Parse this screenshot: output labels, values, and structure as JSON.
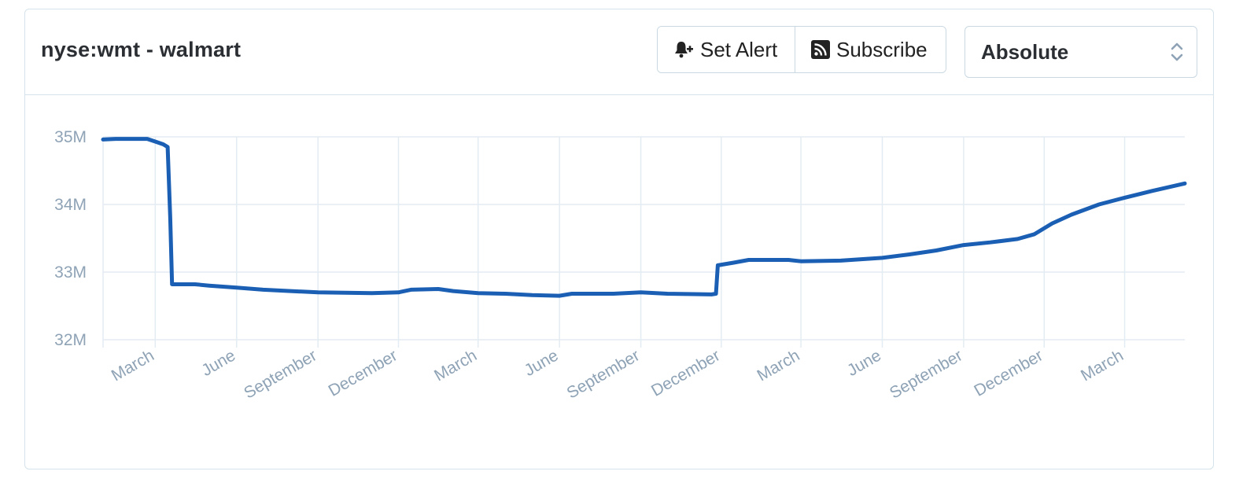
{
  "header": {
    "title": "nyse:wmt - walmart",
    "set_alert_label": "Set Alert",
    "subscribe_label": "Subscribe",
    "mode_select_value": "Absolute"
  },
  "colors": {
    "line": "#1a5fb4",
    "grid": "#e3ecf2",
    "axis_text": "#8fa3b6",
    "border": "#d5e3ec"
  },
  "icons": {
    "alert": "bell-plus-icon",
    "subscribe": "rss-icon",
    "select": "up-down-caret-icon"
  },
  "chart_data": {
    "type": "line",
    "title": "",
    "xlabel": "",
    "ylabel": "",
    "ylim": [
      32000000,
      35000000
    ],
    "yticks": [
      {
        "value": 35000000,
        "label": "35M"
      },
      {
        "value": 34000000,
        "label": "34M"
      },
      {
        "value": 33000000,
        "label": "33M"
      },
      {
        "value": 32000000,
        "label": "32M"
      }
    ],
    "xlim": [
      "2017-01-01",
      "2020-05-08"
    ],
    "xticks": [
      {
        "date": "2017-03-01",
        "label": "March"
      },
      {
        "date": "2017-06-01",
        "label": "June"
      },
      {
        "date": "2017-09-01",
        "label": "September"
      },
      {
        "date": "2017-12-01",
        "label": "December"
      },
      {
        "date": "2018-03-01",
        "label": "March"
      },
      {
        "date": "2018-06-01",
        "label": "June"
      },
      {
        "date": "2018-09-01",
        "label": "September"
      },
      {
        "date": "2018-12-01",
        "label": "December"
      },
      {
        "date": "2019-03-01",
        "label": "March"
      },
      {
        "date": "2019-06-01",
        "label": "June"
      },
      {
        "date": "2019-09-01",
        "label": "September"
      },
      {
        "date": "2019-12-01",
        "label": "December"
      },
      {
        "date": "2020-03-01",
        "label": "March"
      }
    ],
    "grid": true,
    "series": [
      {
        "points": [
          [
            "2017-01-01",
            34960000
          ],
          [
            "2017-01-15",
            34970000
          ],
          [
            "2017-02-20",
            34970000
          ],
          [
            "2017-03-01",
            34930000
          ],
          [
            "2017-03-10",
            34890000
          ],
          [
            "2017-03-15",
            34850000
          ],
          [
            "2017-03-18",
            33800000
          ],
          [
            "2017-03-20",
            32820000
          ],
          [
            "2017-04-15",
            32820000
          ],
          [
            "2017-05-01",
            32800000
          ],
          [
            "2017-06-01",
            32770000
          ],
          [
            "2017-07-01",
            32740000
          ],
          [
            "2017-08-01",
            32720000
          ],
          [
            "2017-09-01",
            32700000
          ],
          [
            "2017-11-01",
            32690000
          ],
          [
            "2017-12-01",
            32700000
          ],
          [
            "2017-12-15",
            32740000
          ],
          [
            "2018-01-15",
            32750000
          ],
          [
            "2018-02-01",
            32720000
          ],
          [
            "2018-03-01",
            32690000
          ],
          [
            "2018-04-01",
            32680000
          ],
          [
            "2018-05-01",
            32660000
          ],
          [
            "2018-06-01",
            32650000
          ],
          [
            "2018-06-15",
            32680000
          ],
          [
            "2018-08-01",
            32680000
          ],
          [
            "2018-09-01",
            32700000
          ],
          [
            "2018-10-01",
            32680000
          ],
          [
            "2018-11-20",
            32670000
          ],
          [
            "2018-11-25",
            32680000
          ],
          [
            "2018-11-27",
            33100000
          ],
          [
            "2018-12-15",
            33140000
          ],
          [
            "2019-01-01",
            33180000
          ],
          [
            "2019-02-15",
            33180000
          ],
          [
            "2019-03-01",
            33160000
          ],
          [
            "2019-04-15",
            33170000
          ],
          [
            "2019-06-01",
            33210000
          ],
          [
            "2019-07-01",
            33260000
          ],
          [
            "2019-08-01",
            33320000
          ],
          [
            "2019-09-01",
            33400000
          ],
          [
            "2019-10-01",
            33440000
          ],
          [
            "2019-11-01",
            33490000
          ],
          [
            "2019-11-20",
            33560000
          ],
          [
            "2019-12-10",
            33720000
          ],
          [
            "2020-01-01",
            33850000
          ],
          [
            "2020-02-01",
            34000000
          ],
          [
            "2020-03-01",
            34100000
          ],
          [
            "2020-04-01",
            34200000
          ],
          [
            "2020-05-08",
            34310000
          ]
        ]
      }
    ]
  }
}
